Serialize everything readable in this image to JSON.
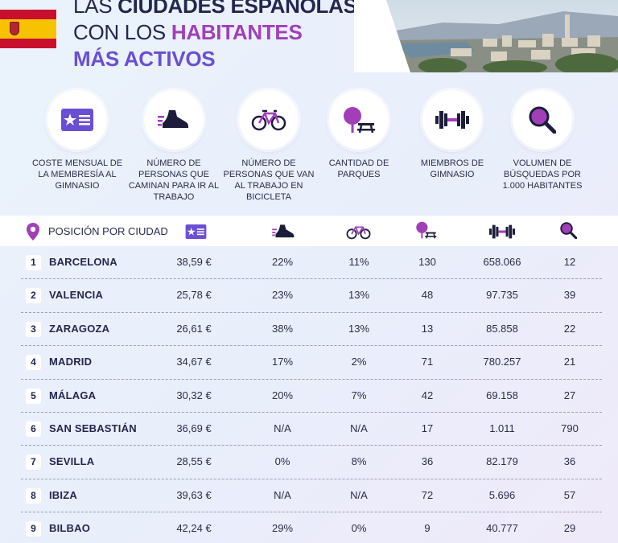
{
  "header": {
    "line1_prefix": "LAS ",
    "line1_bold": "CIUDADES ESPAÑOLAS",
    "line2_prefix": "CON LOS ",
    "line2_highlight": "HABITANTES",
    "line3": "MÁS ACTIVOS"
  },
  "colors": {
    "purple": "#a13fb8",
    "blue": "#6a4fd4",
    "dark": "#23274f",
    "flag_red": "#c8102e",
    "flag_yellow": "#f7c300"
  },
  "categories": [
    {
      "icon": "membership-card-icon",
      "label": "COSTE MENSUAL DE LA MEMBRESÍA AL GIMNASIO"
    },
    {
      "icon": "sneaker-icon",
      "label": "NÚMERO DE PERSONAS QUE CAMINAN PARA IR AL TRABAJO"
    },
    {
      "icon": "bicycle-icon",
      "label": "NÚMERO DE PERSONAS QUE VAN AL TRABAJO EN BICICLETA"
    },
    {
      "icon": "park-icon",
      "label": "CANTIDAD DE PARQUES"
    },
    {
      "icon": "dumbbell-icon",
      "label": "MIEMBROS DE GIMNASIO"
    },
    {
      "icon": "magnifier-icon",
      "label": "VOLUMEN DE BÚSQUEDAS POR 1.000 HABITANTES"
    }
  ],
  "table": {
    "title": "POSICIÓN POR CIUDAD",
    "rows": [
      {
        "rank": "1",
        "city": "BARCELONA",
        "cost": "38,59 €",
        "walk": "22%",
        "bike": "11%",
        "parks": "130",
        "gym": "658.066",
        "search": "12"
      },
      {
        "rank": "2",
        "city": "VALENCIA",
        "cost": "25,78 €",
        "walk": "23%",
        "bike": "13%",
        "parks": "48",
        "gym": "97.735",
        "search": "39"
      },
      {
        "rank": "3",
        "city": "ZARAGOZA",
        "cost": "26,61 €",
        "walk": "38%",
        "bike": "13%",
        "parks": "13",
        "gym": "85.858",
        "search": "22"
      },
      {
        "rank": "4",
        "city": "MADRID",
        "cost": "34,67 €",
        "walk": "17%",
        "bike": "2%",
        "parks": "71",
        "gym": "780.257",
        "search": "21"
      },
      {
        "rank": "5",
        "city": "MÁLAGA",
        "cost": "30,32 €",
        "walk": "20%",
        "bike": "7%",
        "parks": "42",
        "gym": "69.158",
        "search": "27"
      },
      {
        "rank": "6",
        "city": "SAN SEBASTIÁN",
        "cost": "36,69 €",
        "walk": "N/A",
        "bike": "N/A",
        "parks": "17",
        "gym": "1.011",
        "search": "790"
      },
      {
        "rank": "7",
        "city": "SEVILLA",
        "cost": "28,55 €",
        "walk": "0%",
        "bike": "8%",
        "parks": "36",
        "gym": "82.179",
        "search": "36"
      },
      {
        "rank": "8",
        "city": "IBIZA",
        "cost": "39,63 €",
        "walk": "N/A",
        "bike": "N/A",
        "parks": "72",
        "gym": "5.696",
        "search": "57"
      },
      {
        "rank": "9",
        "city": "BILBAO",
        "cost": "42,24 €",
        "walk": "29%",
        "bike": "0%",
        "parks": "9",
        "gym": "40.777",
        "search": "29"
      }
    ]
  }
}
